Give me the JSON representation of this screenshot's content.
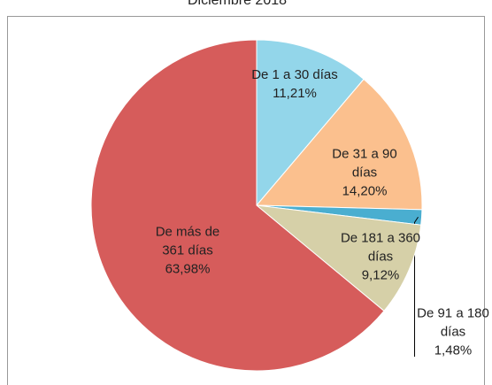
{
  "chart_data": {
    "type": "pie",
    "title": "Diciembre 2018",
    "categories": [
      "De 1 a 30 días",
      "De 31 a 90 días",
      "De 91 a 180 días",
      "De 181 a 360 días",
      "De más de 361 días"
    ],
    "values": [
      11.21,
      14.2,
      1.48,
      9.12,
      63.98
    ],
    "value_labels": [
      "11,21%",
      "14,20%",
      "1,48%",
      "9,12%",
      "63,98%"
    ],
    "colors": [
      "#93d6ea",
      "#fbc08e",
      "#4aaed0",
      "#d6d0a8",
      "#d65c5b"
    ]
  }
}
